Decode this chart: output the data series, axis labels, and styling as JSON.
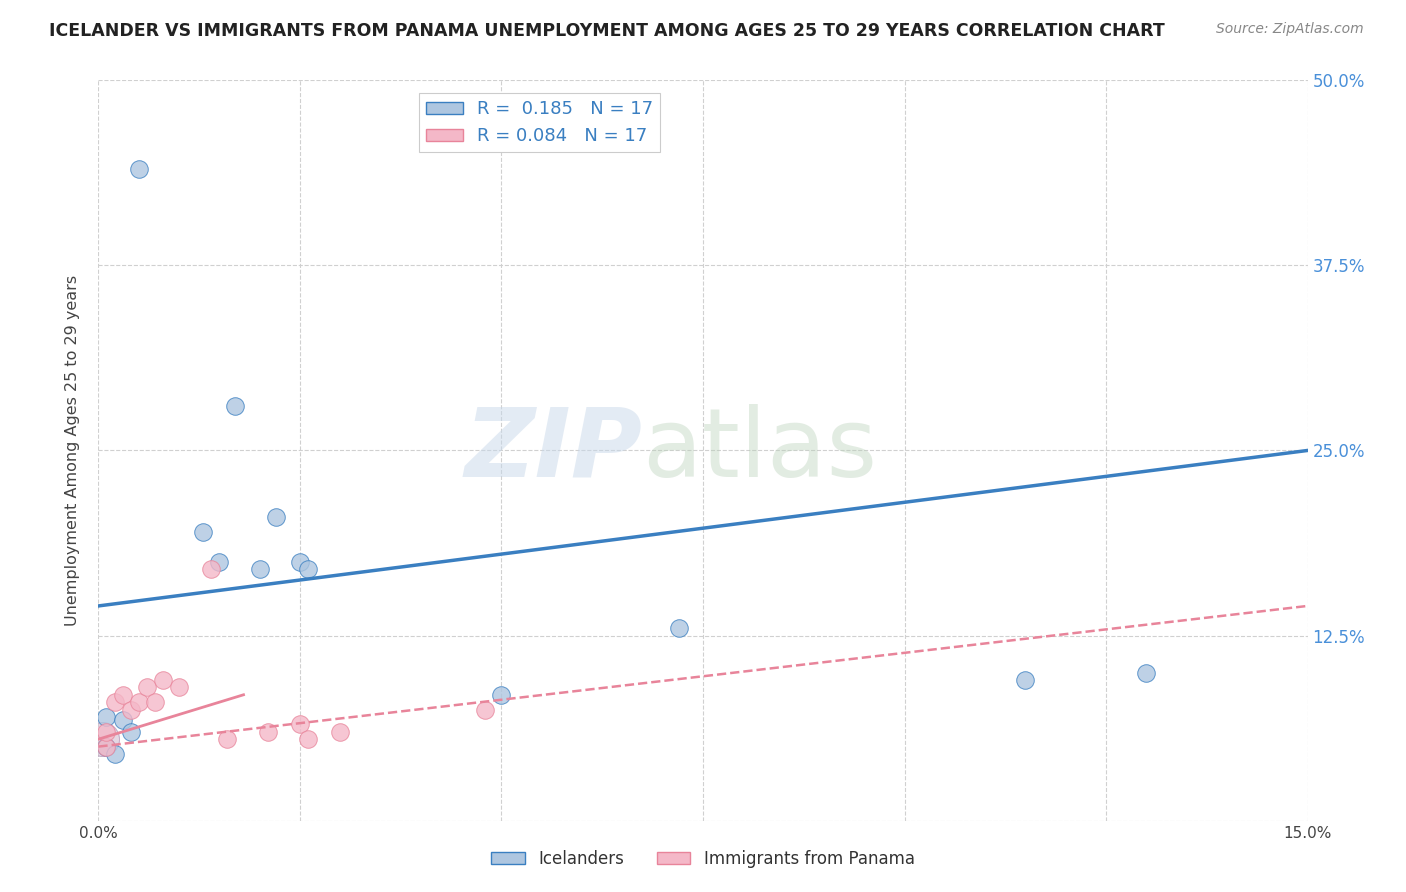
{
  "title": "ICELANDER VS IMMIGRANTS FROM PANAMA UNEMPLOYMENT AMONG AGES 25 TO 29 YEARS CORRELATION CHART",
  "source": "Source: ZipAtlas.com",
  "ylabel": "Unemployment Among Ages 25 to 29 years",
  "xlim": [
    0.0,
    0.15
  ],
  "ylim": [
    0.0,
    0.5
  ],
  "xticks": [
    0.0,
    0.025,
    0.05,
    0.075,
    0.1,
    0.125,
    0.15
  ],
  "xtick_labels": [
    "0.0%",
    "",
    "",
    "",
    "",
    "",
    "15.0%"
  ],
  "yticks_right": [
    0.0,
    0.125,
    0.25,
    0.375,
    0.5
  ],
  "ytick_right_labels": [
    "",
    "12.5%",
    "25.0%",
    "37.5%",
    "50.0%"
  ],
  "r_icelander": 0.185,
  "n_icelander": 17,
  "r_panama": 0.084,
  "n_panama": 17,
  "icelander_color": "#aec6e0",
  "panama_color": "#f4b8c8",
  "line_icelander_color": "#3a7fc1",
  "line_panama_color": "#e8849a",
  "icelander_x": [
    0.001,
    0.001,
    0.002,
    0.003,
    0.004,
    0.005,
    0.013,
    0.015,
    0.017,
    0.02,
    0.022,
    0.025,
    0.026,
    0.05,
    0.072,
    0.115,
    0.13
  ],
  "icelander_y": [
    0.05,
    0.07,
    0.045,
    0.068,
    0.06,
    0.44,
    0.195,
    0.175,
    0.28,
    0.17,
    0.205,
    0.175,
    0.17,
    0.085,
    0.13,
    0.095,
    0.1
  ],
  "panama_x": [
    0.001,
    0.001,
    0.002,
    0.003,
    0.004,
    0.005,
    0.006,
    0.007,
    0.008,
    0.01,
    0.014,
    0.016,
    0.021,
    0.025,
    0.026,
    0.03,
    0.048
  ],
  "panama_y": [
    0.05,
    0.06,
    0.08,
    0.085,
    0.075,
    0.08,
    0.09,
    0.08,
    0.095,
    0.09,
    0.17,
    0.055,
    0.06,
    0.065,
    0.055,
    0.06,
    0.075
  ],
  "legend_icelander": "Icelanders",
  "legend_panama": "Immigrants from Panama",
  "background_color": "#ffffff",
  "grid_color": "#d0d0d0"
}
